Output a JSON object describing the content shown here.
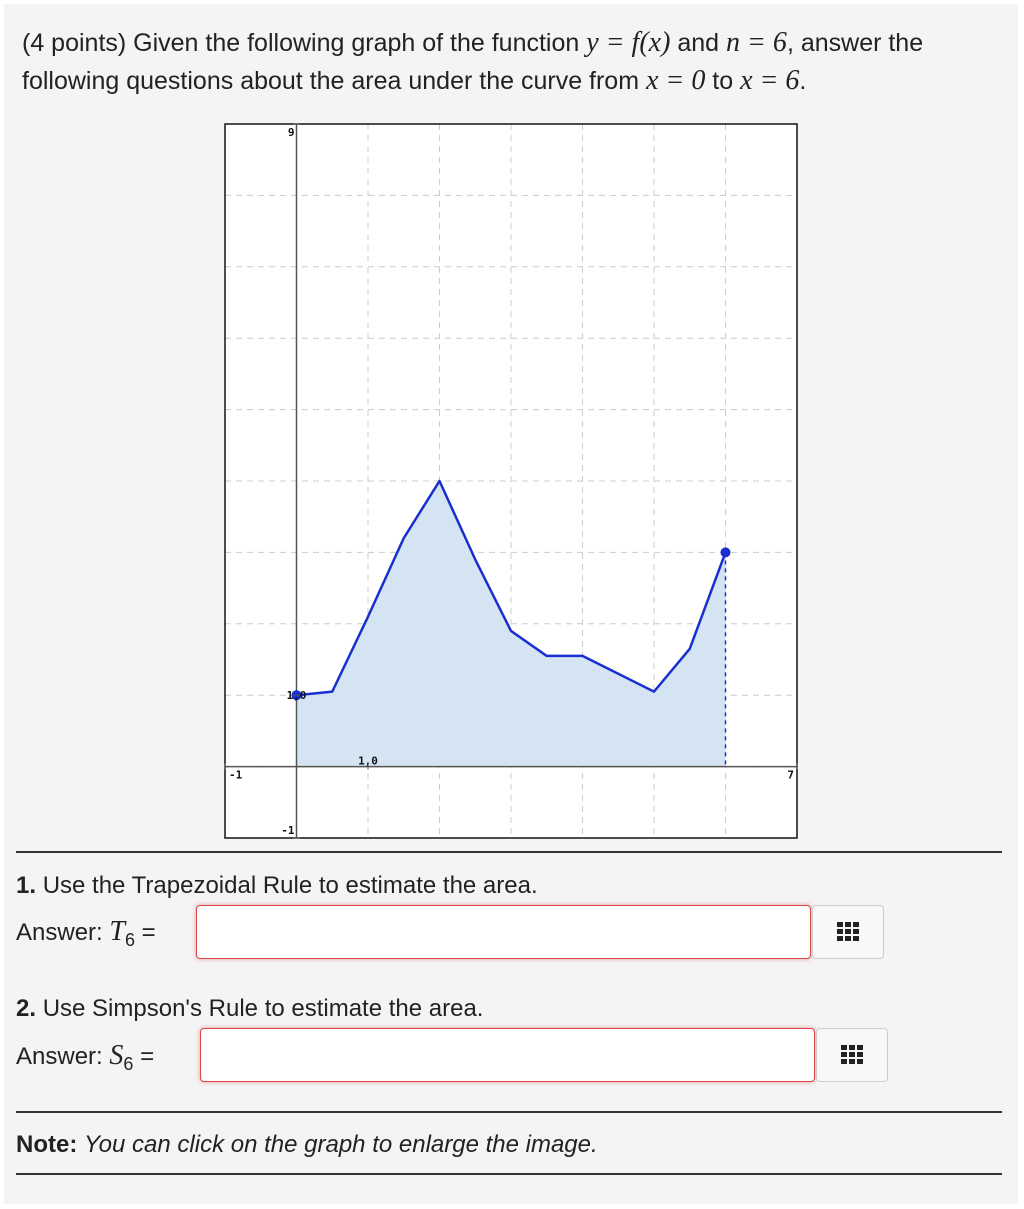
{
  "question": {
    "points": "(4 points) Given the following graph of the function ",
    "func": "y = f(x)",
    "and": " and ",
    "n": "n = 6",
    "rest": ", answer the following questions about the area under the curve from ",
    "from": "x = 0",
    "to": " to ",
    "upto": "x = 6",
    "end": "."
  },
  "graph": {
    "xlim": [
      -1,
      7
    ],
    "ylim": [
      -1,
      9
    ],
    "grid_step": 1,
    "xtick_labels": [
      -1,
      7,
      {
        "value": 1,
        "label": "1,0"
      }
    ],
    "ytick_labels": [
      9,
      -1,
      {
        "value": 1,
        "label": "1,0"
      }
    ],
    "curve": {
      "x": [
        0,
        0.5,
        1,
        1.5,
        2,
        2.5,
        3,
        3.5,
        4,
        4.5,
        5,
        5.5,
        6
      ],
      "y": [
        1,
        1.05,
        2.1,
        3.2,
        4,
        2.9,
        1.9,
        1.55,
        1.55,
        1.3,
        1.05,
        1.65,
        3
      ]
    }
  },
  "part1": {
    "num": "1.",
    "text": "Use the Trapezoidal Rule to estimate the area.",
    "answer": "Answer:",
    "sym": "T",
    "sub": "6",
    "eq": "="
  },
  "part2": {
    "num": "2.",
    "text": "Use Simpson's Rule to estimate the area.",
    "answer": "Answer:",
    "sym": "S",
    "sub": "6",
    "eq": "="
  },
  "note": {
    "label": "Note:",
    "text": "You can click on the graph to enlarge the image."
  }
}
